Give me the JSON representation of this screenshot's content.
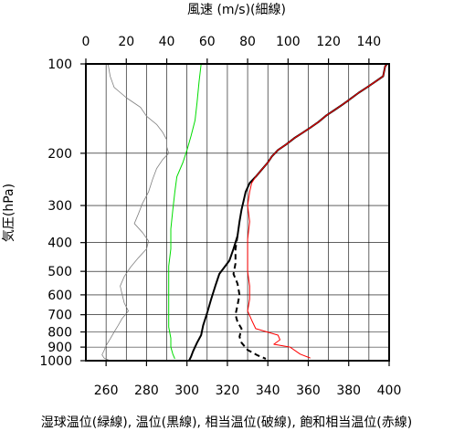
{
  "chart_data": {
    "type": "line",
    "title": "",
    "top_axis": {
      "label": "風速 (m/s)(細線)",
      "range": [
        0,
        150
      ],
      "ticks": [
        0,
        20,
        40,
        60,
        80,
        100,
        120,
        140
      ]
    },
    "bottom_axis": {
      "label": "湿球温位(緑線), 温位(黒線), 相当温位(破線), 飽和相当温位(赤線)",
      "range": [
        250,
        400
      ],
      "ticks": [
        260,
        280,
        300,
        320,
        340,
        360,
        380,
        400
      ]
    },
    "y_axis": {
      "label": "気圧(hPa)",
      "scale": "log",
      "reversed": true,
      "range": [
        100,
        1000
      ],
      "ticks": [
        100,
        200,
        300,
        400,
        500,
        600,
        700,
        800,
        900,
        1000
      ]
    },
    "grid": true,
    "series": [
      {
        "key": "wind",
        "axis": "top",
        "color": "#808080",
        "style": "thin",
        "points": [
          [
            11,
            100
          ],
          [
            12,
            110
          ],
          [
            14,
            120
          ],
          [
            20,
            130
          ],
          [
            27,
            140
          ],
          [
            30,
            150
          ],
          [
            35,
            160
          ],
          [
            38,
            170
          ],
          [
            40,
            180
          ],
          [
            40,
            190
          ],
          [
            41,
            200
          ],
          [
            38,
            210
          ],
          [
            35,
            225
          ],
          [
            33,
            245
          ],
          [
            31,
            270
          ],
          [
            28,
            295
          ],
          [
            26,
            320
          ],
          [
            24,
            345
          ],
          [
            28,
            370
          ],
          [
            31,
            395
          ],
          [
            30,
            420
          ],
          [
            26,
            450
          ],
          [
            22,
            485
          ],
          [
            19,
            520
          ],
          [
            17,
            560
          ],
          [
            18,
            600
          ],
          [
            19,
            640
          ],
          [
            21,
            680
          ],
          [
            18,
            720
          ],
          [
            16,
            760
          ],
          [
            14,
            800
          ],
          [
            12,
            845
          ],
          [
            10,
            890
          ],
          [
            9,
            925
          ],
          [
            8,
            955
          ],
          [
            9,
            980
          ],
          [
            12,
            1000
          ]
        ]
      },
      {
        "key": "wet_bulb",
        "axis": "bottom",
        "color": "#00dd00",
        "style": "solid",
        "points": [
          [
            307,
            100
          ],
          [
            306,
            115
          ],
          [
            305,
            135
          ],
          [
            304,
            155
          ],
          [
            302,
            175
          ],
          [
            300,
            195
          ],
          [
            298,
            215
          ],
          [
            295,
            240
          ],
          [
            294,
            270
          ],
          [
            293,
            310
          ],
          [
            292,
            360
          ],
          [
            292,
            420
          ],
          [
            291,
            480
          ],
          [
            291,
            550
          ],
          [
            291,
            620
          ],
          [
            291,
            700
          ],
          [
            291,
            770
          ],
          [
            292,
            840
          ],
          [
            292,
            900
          ],
          [
            293,
            950
          ],
          [
            294,
            985
          ]
        ]
      },
      {
        "key": "potential",
        "axis": "bottom",
        "color": "#000000",
        "style": "solid",
        "points": [
          [
            399,
            100
          ],
          [
            398,
            102
          ],
          [
            397,
            110
          ],
          [
            393,
            115
          ],
          [
            389,
            120
          ],
          [
            385,
            125
          ],
          [
            381,
            131
          ],
          [
            377,
            137
          ],
          [
            373,
            143
          ],
          [
            369,
            149
          ],
          [
            365,
            157
          ],
          [
            361,
            164
          ],
          [
            357,
            171
          ],
          [
            353,
            178
          ],
          [
            349,
            187
          ],
          [
            345,
            195
          ],
          [
            342,
            205
          ],
          [
            340,
            215
          ],
          [
            337,
            227
          ],
          [
            334,
            240
          ],
          [
            331,
            252
          ],
          [
            329,
            270
          ],
          [
            328,
            290
          ],
          [
            327,
            310
          ],
          [
            326,
            340
          ],
          [
            325,
            380
          ],
          [
            323,
            420
          ],
          [
            321,
            460
          ],
          [
            316,
            510
          ],
          [
            314,
            560
          ],
          [
            312,
            620
          ],
          [
            310,
            690
          ],
          [
            308,
            760
          ],
          [
            307,
            820
          ],
          [
            305,
            870
          ],
          [
            303,
            930
          ],
          [
            302,
            970
          ],
          [
            301,
            1000
          ]
        ]
      },
      {
        "key": "equivalent",
        "axis": "bottom",
        "color": "#000000",
        "style": "dashed",
        "points": [
          [
            325,
            380
          ],
          [
            324,
            420
          ],
          [
            324,
            470
          ],
          [
            323,
            510
          ],
          [
            325,
            550
          ],
          [
            326,
            600
          ],
          [
            325,
            650
          ],
          [
            324,
            700
          ],
          [
            325,
            740
          ],
          [
            327,
            780
          ],
          [
            326,
            830
          ],
          [
            327,
            870
          ],
          [
            330,
            920
          ],
          [
            335,
            960
          ],
          [
            339,
            985
          ]
        ]
      },
      {
        "key": "saturated_equivalent",
        "axis": "bottom",
        "color": "#ff0000",
        "style": "solid",
        "points": [
          [
            399,
            100
          ],
          [
            398,
            102
          ],
          [
            397,
            110
          ],
          [
            393,
            115
          ],
          [
            389,
            120
          ],
          [
            385,
            125
          ],
          [
            381,
            131
          ],
          [
            377,
            137
          ],
          [
            373,
            143
          ],
          [
            369,
            149
          ],
          [
            365,
            157
          ],
          [
            361,
            164
          ],
          [
            357,
            171
          ],
          [
            353,
            178
          ],
          [
            349,
            187
          ],
          [
            345,
            195
          ],
          [
            342,
            205
          ],
          [
            340,
            215
          ],
          [
            337,
            227
          ],
          [
            334,
            240
          ],
          [
            332,
            252
          ],
          [
            331,
            270
          ],
          [
            330,
            300
          ],
          [
            331,
            340
          ],
          [
            330,
            390
          ],
          [
            330,
            440
          ],
          [
            330,
            500
          ],
          [
            331,
            560
          ],
          [
            331,
            620
          ],
          [
            330,
            680
          ],
          [
            332,
            730
          ],
          [
            334,
            780
          ],
          [
            345,
            820
          ],
          [
            346,
            850
          ],
          [
            343,
            880
          ],
          [
            351,
            900
          ],
          [
            356,
            950
          ],
          [
            361,
            980
          ]
        ]
      }
    ]
  }
}
